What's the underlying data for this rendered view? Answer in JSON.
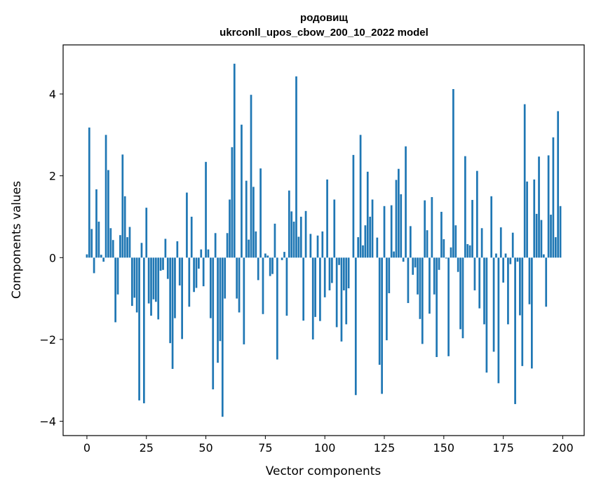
{
  "chart_data": {
    "type": "bar",
    "title_line1": "родовищ",
    "title_line2": "ukrconll_upos_cbow_200_10_2022 model",
    "xlabel": "Vector components",
    "ylabel": "Components values",
    "xlim": [
      -10,
      209
    ],
    "ylim": [
      -4.35,
      5.2
    ],
    "xticks": [
      0,
      25,
      50,
      75,
      100,
      125,
      150,
      175,
      200
    ],
    "yticks": [
      -4,
      -2,
      0,
      2,
      4
    ],
    "ytick_labels": [
      "−4",
      "−2",
      "0",
      "2",
      "4"
    ],
    "bar_color": "#1f77b4",
    "grid": false,
    "legend": "none",
    "values": [
      0.08,
      3.18,
      0.7,
      -0.38,
      1.67,
      0.88,
      0.07,
      -0.1,
      3.0,
      2.14,
      0.72,
      0.43,
      -1.58,
      -0.9,
      0.55,
      2.52,
      1.5,
      0.5,
      0.75,
      -1.18,
      -0.98,
      -1.34,
      -3.49,
      0.36,
      -3.56,
      1.22,
      -1.12,
      -1.42,
      -1.02,
      -1.08,
      -1.51,
      -0.32,
      -0.3,
      0.46,
      -0.52,
      -2.09,
      -2.72,
      -1.48,
      0.4,
      -0.68,
      -1.99,
      0.0,
      1.59,
      -1.2,
      1.0,
      -0.84,
      -0.74,
      -0.27,
      0.2,
      -0.7,
      2.34,
      0.2,
      -1.48,
      -3.22,
      0.6,
      -2.57,
      -2.04,
      -3.89,
      -1.0,
      0.6,
      1.42,
      2.7,
      4.74,
      -1.0,
      -1.34,
      3.25,
      -2.12,
      1.88,
      0.44,
      3.98,
      1.73,
      0.64,
      -0.55,
      2.18,
      -1.38,
      0.1,
      0.05,
      -0.45,
      -0.4,
      0.83,
      -2.49,
      0.0,
      -0.06,
      0.14,
      -1.42,
      1.64,
      1.13,
      0.88,
      4.43,
      0.51,
      1.0,
      -1.54,
      1.14,
      0.0,
      0.58,
      -2.0,
      -1.45,
      0.54,
      -1.55,
      0.64,
      -0.97,
      1.91,
      -0.8,
      -0.62,
      1.42,
      -1.7,
      -0.18,
      -2.05,
      -0.8,
      -1.63,
      -0.75,
      0.0,
      2.51,
      -3.36,
      0.5,
      3.0,
      0.3,
      0.79,
      2.1,
      1.0,
      1.42,
      0.0,
      0.49,
      -2.62,
      -3.33,
      1.26,
      -2.02,
      -0.87,
      1.28,
      0.15,
      1.9,
      2.17,
      1.55,
      -0.1,
      2.72,
      -1.11,
      0.77,
      -0.42,
      -0.24,
      -0.9,
      -1.5,
      -2.11,
      1.4,
      0.67,
      -1.37,
      1.48,
      -0.9,
      -2.43,
      -0.3,
      1.12,
      0.45,
      -0.02,
      -2.41,
      0.25,
      4.12,
      0.79,
      -0.35,
      -1.75,
      -1.97,
      2.48,
      0.33,
      0.3,
      1.41,
      -0.8,
      2.12,
      -1.24,
      0.72,
      -1.63,
      -2.81,
      0.0,
      1.5,
      -2.3,
      0.1,
      -3.07,
      0.74,
      -0.61,
      0.1,
      -1.63,
      -0.16,
      0.61,
      -3.58,
      -0.1,
      -1.41,
      -2.65,
      3.75,
      1.86,
      -1.14,
      -2.71,
      1.91,
      1.07,
      2.47,
      0.92,
      0.08,
      -1.2,
      2.5,
      1.05,
      2.94,
      0.5,
      3.58,
      1.26
    ]
  }
}
